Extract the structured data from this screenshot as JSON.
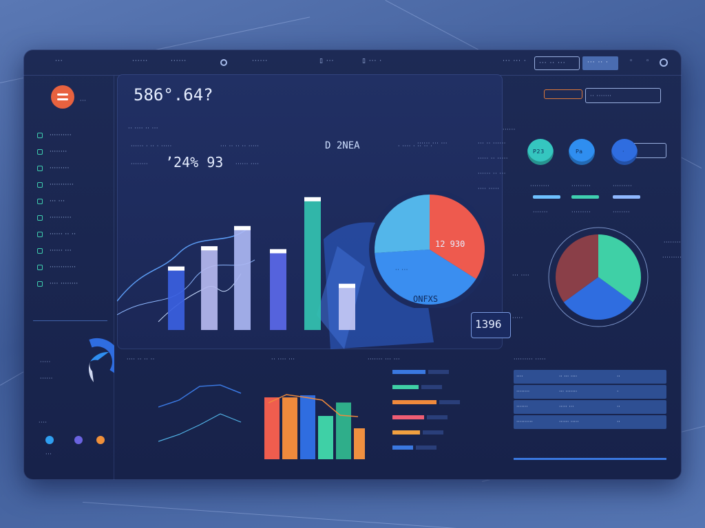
{
  "topbar": {
    "items": [
      "···",
      "······",
      "······",
      "▯ ···",
      "▯ ··· ·",
      "··· ··· ·",
      "··· ·· ···"
    ],
    "active_tab": "··· ·· ·",
    "icons": [
      "circle-icon",
      "circle-icon",
      "settings-icon"
    ]
  },
  "sidebar": {
    "title": "···",
    "items": [
      {
        "label": "··········",
        "icon": "chart-icon"
      },
      {
        "label": "········",
        "icon": "user-icon"
      },
      {
        "label": "·········",
        "icon": "list-icon"
      },
      {
        "label": "···········",
        "icon": "grid-icon"
      },
      {
        "label": "··· ···",
        "icon": "file-icon"
      },
      {
        "label": "··········",
        "icon": "layers-icon"
      },
      {
        "label": "······ ·· ··",
        "icon": "doc-icon"
      },
      {
        "label": "······ ···",
        "icon": "mail-icon"
      },
      {
        "label": "············",
        "icon": "star-icon"
      },
      {
        "label": "···· ········",
        "icon": "gear-icon"
      }
    ],
    "donut_labels": [
      "·····",
      "······"
    ],
    "footer_label": "····",
    "status_dots": [
      "#2f9ff0",
      "#6a63e0",
      "#f0903a"
    ],
    "status_caption": "···"
  },
  "main": {
    "headline": "586°.64?",
    "sub_labels": [
      "·· ···· ·· ···",
      "······ · ·· · ·····",
      "··· ·· ·· ·· ·····"
    ],
    "kpi_caption": "········",
    "kpi_value": "ʼ24% 93",
    "kpi_side": "······ ····",
    "center_title": "D 2NEA",
    "center_sub": "· ···· · ·· ·· ·",
    "pie_label_top": "12 930",
    "pie_label_mid": "·· ···",
    "pie_label_bottom": "ONFXS",
    "badge": "1396",
    "right_list": [
      "······ ··· ···",
      "··· ·· ······",
      "····· ·· ·····",
      "······ ·· ···",
      "···· ·····"
    ]
  },
  "right": {
    "title": "······",
    "search_placeholder": "·· ·······",
    "circles": [
      {
        "label": "P23",
        "color": "#35c6c0"
      },
      {
        "label": "Pa",
        "color": "#2f8ef0"
      },
      {
        "label": "·",
        "color": "#2f6de0"
      }
    ],
    "circle_captions": [
      "·········",
      "·········",
      "·········"
    ],
    "legend": [
      "·······",
      "·········",
      "········",
      "·······"
    ],
    "pie_labels": [
      "········",
      "·········",
      "··· ····",
      "·····"
    ]
  },
  "bottom": {
    "left_title": "···· ·· ·· ··",
    "left_rows": [
      "······",
      "··· ···",
      "·· ·· ·",
      "·· ···",
      "·······",
      "·· ··· ·",
      "······"
    ],
    "center_title": "·· ···· ···",
    "bars_title": "········ ··· ·",
    "hbar_title": "······· ··· ···",
    "table_title": "········· ·····",
    "table_rows": [
      [
        "····",
        "·· ··· ····",
        "··"
      ],
      [
        "········",
        "··· ·······",
        "·"
      ],
      [
        "·······",
        "····· ···",
        "··"
      ],
      [
        "··········",
        "······ ·····",
        "··"
      ]
    ]
  },
  "chart_data": [
    {
      "type": "bar",
      "categories": [
        "",
        "",
        "",
        "",
        "",
        ""
      ],
      "values": [
        44,
        58,
        72,
        56,
        92,
        32
      ],
      "ylim": [
        0,
        100
      ]
    },
    {
      "type": "pie",
      "values": [
        34,
        40,
        26
      ]
    },
    {
      "type": "pie",
      "values": [
        35,
        30,
        35
      ]
    },
    {
      "type": "bar",
      "values": [
        48,
        38,
        64,
        46,
        40,
        30
      ]
    },
    {
      "type": "bar",
      "values": [
        60,
        60,
        62,
        42,
        55,
        30
      ]
    }
  ]
}
